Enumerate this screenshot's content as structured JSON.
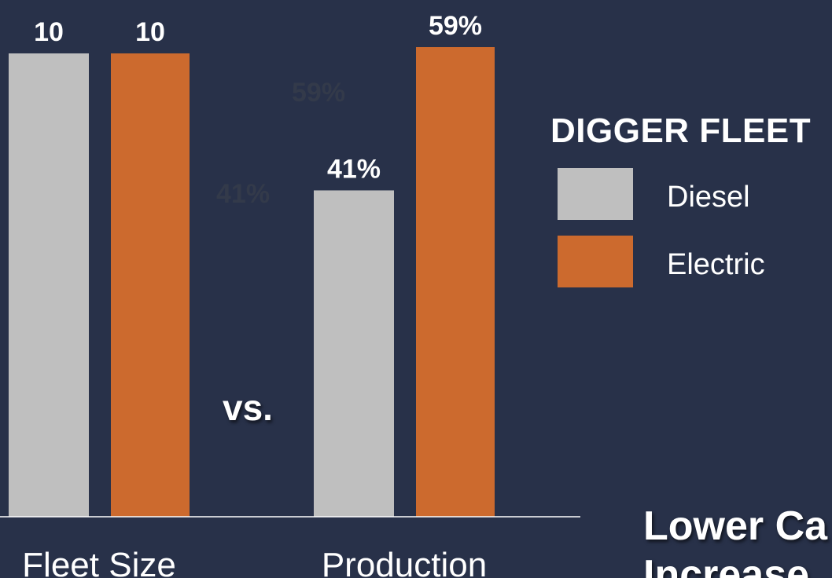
{
  "colors": {
    "background": "#283149",
    "diesel": "#bfbfbf",
    "electric": "#cc6a2e",
    "text": "#ffffff",
    "ghost_text": "#333a4a"
  },
  "chart_data": [
    {
      "type": "bar",
      "categories": [
        "Fleet Size"
      ],
      "series": [
        {
          "name": "Diesel",
          "values": [
            10
          ],
          "labels": [
            "10"
          ]
        },
        {
          "name": "Electric",
          "values": [
            10
          ],
          "labels": [
            "10"
          ]
        }
      ],
      "xlabel": "",
      "ylabel": "",
      "ylim": [
        0,
        10
      ],
      "grid": false
    },
    {
      "type": "bar",
      "categories": [
        "Production"
      ],
      "series": [
        {
          "name": "Diesel",
          "values": [
            41
          ],
          "labels": [
            "41%"
          ]
        },
        {
          "name": "Electric",
          "values": [
            59
          ],
          "labels": [
            "59%"
          ]
        }
      ],
      "xlabel": "",
      "ylabel": "",
      "ylim": [
        0,
        59
      ],
      "grid": false
    }
  ],
  "legend": {
    "title": "DIGGER FLEET",
    "placement": "right",
    "items": [
      {
        "label": "Diesel",
        "color": "#bfbfbf"
      },
      {
        "label": "Electric",
        "color": "#cc6a2e"
      }
    ]
  },
  "separator_text": "vs.",
  "ghost_labels": [
    "59%",
    "41%"
  ],
  "footer_lines": [
    "Lower Ca",
    "Increase"
  ]
}
